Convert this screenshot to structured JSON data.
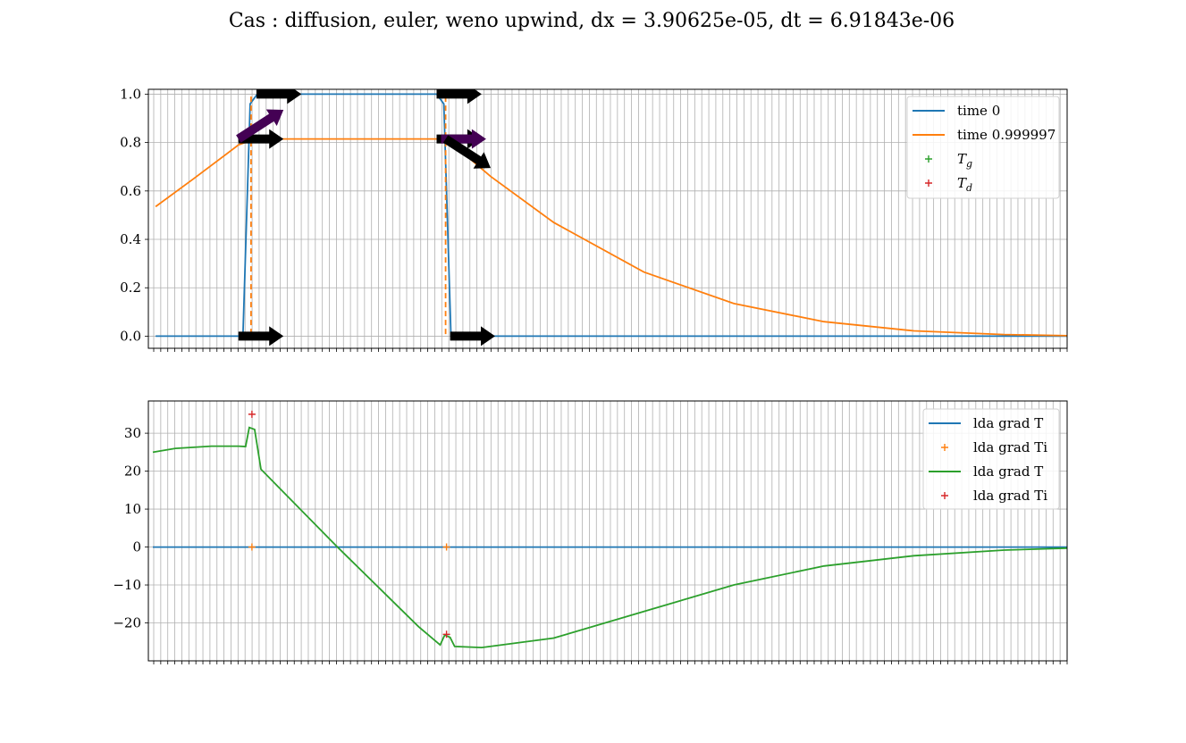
{
  "figure": {
    "title": "Cas : diffusion, euler, weno upwind, dx = 3.90625e-05, dt = 6.91843e-06"
  },
  "colors": {
    "c0": "#1f77b4",
    "c1": "#ff7f0e",
    "c2": "#2ca02c",
    "c3": "#d62728",
    "arrow": "#000000",
    "arrow_purple": "#440154",
    "grid": "#b0b0b0"
  },
  "chart_data": [
    {
      "type": "line",
      "grid": true,
      "legend_position": "top-right",
      "xlim": [
        0,
        1.02
      ],
      "ylim": [
        -0.05,
        1.02
      ],
      "yticks": [
        0.0,
        0.2,
        0.4,
        0.6,
        0.8,
        1.0
      ],
      "ytick_labels": [
        "0.0",
        "0.2",
        "0.4",
        "0.6",
        "0.8",
        "1.0"
      ],
      "series": [
        {
          "name": "time 0",
          "color": "#1f77b4",
          "x": [
            0.008,
            0.105,
            0.113,
            0.121,
            0.32,
            0.328,
            0.336,
            1.02
          ],
          "y": [
            0,
            0,
            0.96,
            1,
            1,
            0.96,
            0,
            0
          ]
        },
        {
          "name": "time 0.999997",
          "color": "#ff7f0e",
          "x": [
            0.008,
            0.05,
            0.1,
            0.118,
            0.2,
            0.3,
            0.331,
            0.38,
            0.45,
            0.55,
            0.65,
            0.75,
            0.85,
            0.95,
            1.02
          ],
          "y": [
            0.535,
            0.65,
            0.79,
            0.815,
            0.815,
            0.815,
            0.815,
            0.66,
            0.47,
            0.265,
            0.135,
            0.06,
            0.022,
            0.007,
            0.002
          ]
        }
      ],
      "markers": [
        {
          "name": "T_g",
          "color": "#2ca02c",
          "x": [],
          "y": []
        },
        {
          "name": "T_d",
          "color": "#d62728",
          "x": [],
          "y": []
        }
      ],
      "interface_lines": [
        {
          "x": 0.114,
          "color": "#ff7f0e"
        },
        {
          "x": 0.33,
          "color": "#ff7f0e"
        }
      ],
      "arrows": [
        {
          "x": 0.12,
          "y": 1.0,
          "dx": 0.05,
          "dy": 0,
          "color": "#000000"
        },
        {
          "x": 0.32,
          "y": 1.0,
          "dx": 0.05,
          "dy": 0,
          "color": "#000000"
        },
        {
          "x": 0.1,
          "y": 0.815,
          "dx": 0.05,
          "dy": 0,
          "color": "#000000"
        },
        {
          "x": 0.32,
          "y": 0.815,
          "dx": 0.05,
          "dy": 0,
          "color": "#000000"
        },
        {
          "x": 0.1,
          "y": 0.815,
          "dx": 0.05,
          "dy": 0.12,
          "color": "#440154"
        },
        {
          "x": 0.325,
          "y": 0.815,
          "dx": 0.05,
          "dy": 0,
          "color": "#440154"
        },
        {
          "x": 0.33,
          "y": 0.815,
          "dx": 0.05,
          "dy": -0.12,
          "color": "#000000"
        },
        {
          "x": 0.1,
          "y": 0.0,
          "dx": 0.05,
          "dy": 0,
          "color": "#000000"
        },
        {
          "x": 0.335,
          "y": 0.0,
          "dx": 0.05,
          "dy": 0,
          "color": "#000000"
        }
      ],
      "legend": [
        {
          "label": "time 0",
          "kind": "line",
          "color": "#1f77b4"
        },
        {
          "label": "time 0.999997",
          "kind": "line",
          "color": "#ff7f0e"
        },
        {
          "label": "T",
          "sub": "g",
          "kind": "marker",
          "color": "#2ca02c"
        },
        {
          "label": "T",
          "sub": "d",
          "kind": "marker",
          "color": "#d62728"
        }
      ]
    },
    {
      "type": "line",
      "grid": true,
      "legend_position": "top-right",
      "xlim": [
        0,
        1.02
      ],
      "ylim": [
        -30,
        38.5
      ],
      "yticks": [
        -20,
        -10,
        0,
        10,
        20,
        30
      ],
      "ytick_labels": [
        "−20",
        "−10",
        "0",
        "10",
        "20",
        "30"
      ],
      "series": [
        {
          "name": "lda grad T",
          "color": "#1f77b4",
          "x": [
            0.005,
            1.02
          ],
          "y": [
            0,
            0
          ]
        },
        {
          "name": "lda grad T",
          "color": "#2ca02c",
          "x": [
            0.005,
            0.03,
            0.07,
            0.1,
            0.108,
            0.112,
            0.118,
            0.125,
            0.21,
            0.3,
            0.324,
            0.329,
            0.335,
            0.34,
            0.37,
            0.45,
            0.55,
            0.65,
            0.75,
            0.85,
            0.95,
            1.02
          ],
          "y": [
            25,
            26,
            26.6,
            26.6,
            26.5,
            31.5,
            31,
            20.5,
            0,
            -21,
            -25.8,
            -23.2,
            -23.8,
            -26.2,
            -26.5,
            -24,
            -17,
            -10,
            -5,
            -2.3,
            -0.8,
            -0.3
          ]
        }
      ],
      "markers": [
        {
          "name": "lda grad Ti",
          "color": "#ff7f0e",
          "x": [
            0.115,
            0.331
          ],
          "y": [
            0,
            0
          ]
        },
        {
          "name": "lda grad Ti",
          "color": "#d62728",
          "x": [
            0.115,
            0.331
          ],
          "y": [
            35,
            -23
          ]
        }
      ],
      "interface_lines": [],
      "arrows": [],
      "legend": [
        {
          "label": "lda grad T",
          "kind": "line",
          "color": "#1f77b4"
        },
        {
          "label": "lda grad Ti",
          "kind": "marker",
          "color": "#ff7f0e"
        },
        {
          "label": "lda grad T",
          "kind": "line",
          "color": "#2ca02c"
        },
        {
          "label": "lda grad Ti",
          "kind": "marker",
          "color": "#d62728"
        }
      ]
    }
  ]
}
